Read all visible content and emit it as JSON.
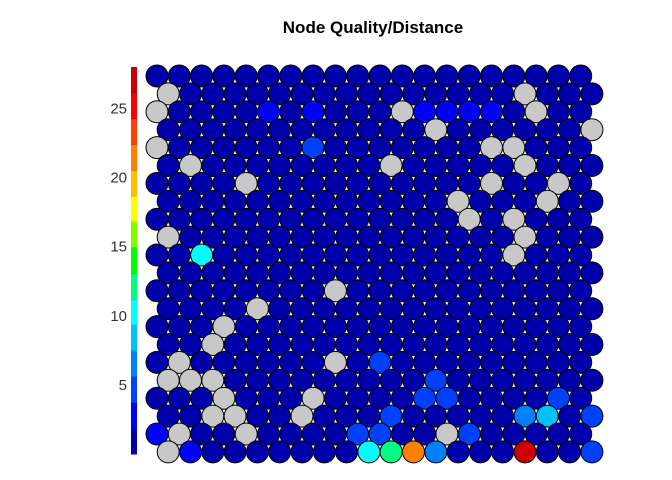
{
  "chart_data": {
    "type": "heatmap",
    "title": "Node Quality/Distance",
    "grid": {
      "cols": 20,
      "rows": 18,
      "topology": "hexagonal"
    },
    "colorbar": {
      "min": 0,
      "max": 28,
      "ticks": [
        5,
        10,
        15,
        20,
        25
      ],
      "colors": [
        "#0000aa",
        "#0000ff",
        "#0040ff",
        "#0080ff",
        "#00c0ff",
        "#00ffff",
        "#00ff80",
        "#00ff00",
        "#80ff00",
        "#ffff00",
        "#ffc000",
        "#ff8000",
        "#ff4000",
        "#ff0000",
        "#cc0000"
      ]
    },
    "empty_color": "#c8c8c8",
    "default_value": 1,
    "empty_nodes": [
      [
        0,
        1
      ],
      [
        16,
        1
      ],
      [
        0,
        2
      ],
      [
        11,
        2
      ],
      [
        17,
        2
      ],
      [
        12,
        3
      ],
      [
        19,
        3
      ],
      [
        0,
        4
      ],
      [
        15,
        4
      ],
      [
        16,
        4
      ],
      [
        1,
        5
      ],
      [
        10,
        5
      ],
      [
        16,
        5
      ],
      [
        4,
        6
      ],
      [
        15,
        6
      ],
      [
        18,
        6
      ],
      [
        13,
        7
      ],
      [
        17,
        7
      ],
      [
        14,
        8
      ],
      [
        16,
        8
      ],
      [
        0,
        9
      ],
      [
        16,
        9
      ],
      [
        16,
        10
      ],
      [
        8,
        12
      ],
      [
        4,
        13
      ],
      [
        3,
        14
      ],
      [
        2,
        15
      ],
      [
        1,
        16
      ],
      [
        8,
        16
      ],
      [
        0,
        17
      ],
      [
        1,
        17
      ],
      [
        2,
        17
      ],
      [
        3,
        18
      ],
      [
        7,
        18
      ],
      [
        2,
        19
      ],
      [
        3,
        19
      ],
      [
        6,
        19
      ],
      [
        1,
        20
      ],
      [
        4,
        20
      ],
      [
        13,
        20
      ],
      [
        0,
        21
      ]
    ],
    "values": [
      [
        2,
        10,
        10
      ],
      [
        12,
        2,
        2
      ],
      [
        4,
        6,
        6
      ],
      [
        7,
        2,
        2
      ],
      [
        5,
        2,
        2
      ],
      [
        13,
        2,
        2
      ],
      [
        14,
        2,
        2
      ],
      [
        15,
        2,
        2
      ],
      [
        7,
        4,
        4
      ],
      [
        12,
        17,
        4
      ],
      [
        10,
        16,
        4
      ],
      [
        18,
        18,
        5
      ],
      [
        12,
        18,
        5
      ],
      [
        13,
        18,
        5
      ],
      [
        2,
        19,
        4
      ],
      [
        0,
        20,
        3
      ],
      [
        9,
        20,
        5
      ],
      [
        10,
        20,
        4
      ],
      [
        13,
        20,
        4
      ],
      [
        14,
        20,
        4
      ],
      [
        10,
        19,
        5
      ],
      [
        16,
        19,
        6
      ],
      [
        17,
        19,
        8
      ],
      [
        19,
        19,
        4
      ],
      [
        0,
        21,
        7
      ],
      [
        1,
        21,
        3
      ],
      [
        9,
        21,
        10
      ],
      [
        10,
        21,
        12
      ],
      [
        11,
        21,
        22
      ],
      [
        12,
        21,
        6
      ],
      [
        16,
        21,
        27
      ],
      [
        19,
        21,
        5
      ]
    ]
  }
}
